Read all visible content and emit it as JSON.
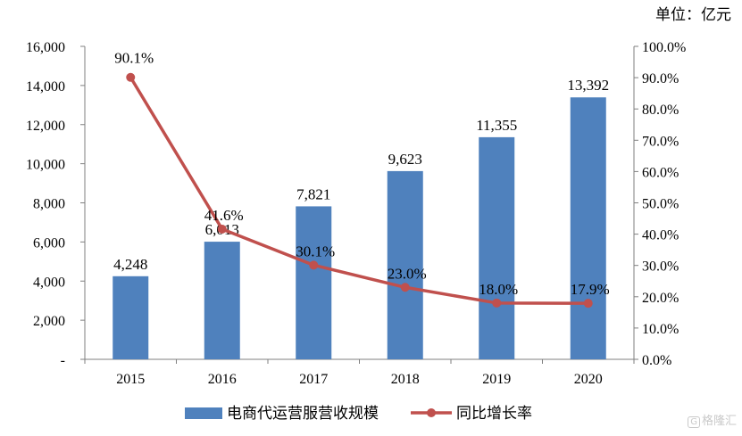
{
  "unit_label": "单位：亿元",
  "watermark": "格隆汇",
  "watermark_icon": "G",
  "chart_data": {
    "type": "bar",
    "categories": [
      "2015",
      "2016",
      "2017",
      "2018",
      "2019",
      "2020"
    ],
    "series": [
      {
        "name": "电商代运营服营收规模",
        "type": "bar",
        "axis": "left",
        "values": [
          4248,
          6013,
          7821,
          9623,
          11355,
          13392
        ],
        "labels": [
          "4,248",
          "6,013",
          "7,821",
          "9,623",
          "11,355",
          "13,392"
        ],
        "color": "#4f81bd"
      },
      {
        "name": "同比增长率",
        "type": "line",
        "axis": "right",
        "values": [
          90.1,
          41.6,
          30.1,
          23.0,
          18.0,
          17.9
        ],
        "labels": [
          "90.1%",
          "41.6%",
          "30.1%",
          "23.0%",
          "18.0%",
          "17.9%"
        ],
        "color": "#c0504d"
      }
    ],
    "left_axis": {
      "ylim": [
        0,
        16000
      ],
      "ticks": [
        0,
        2000,
        4000,
        6000,
        8000,
        10000,
        12000,
        14000,
        16000
      ],
      "tick_labels": [
        "-",
        "2,000",
        "4,000",
        "6,000",
        "8,000",
        "10,000",
        "12,000",
        "14,000",
        "16,000"
      ]
    },
    "right_axis": {
      "ylim": [
        0,
        100
      ],
      "ticks": [
        0,
        10,
        20,
        30,
        40,
        50,
        60,
        70,
        80,
        90,
        100
      ],
      "tick_labels": [
        "0.0%",
        "10.0%",
        "20.0%",
        "30.0%",
        "40.0%",
        "50.0%",
        "60.0%",
        "70.0%",
        "80.0%",
        "90.0%",
        "100.0%"
      ]
    },
    "grid": false,
    "legend_position": "bottom"
  }
}
